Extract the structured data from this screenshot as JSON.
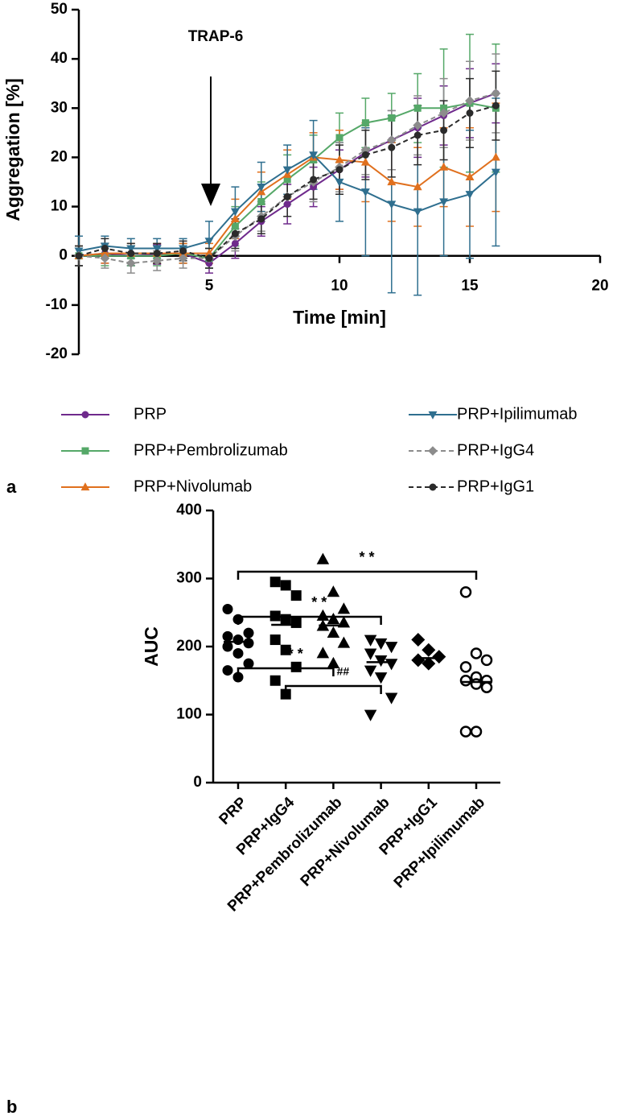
{
  "chart_data": [
    {
      "type": "line",
      "label": "a",
      "xlabel": "Time [min]",
      "ylabel": "Aggregation [%]",
      "annotation": "TRAP-6",
      "x": [
        0,
        1,
        2,
        3,
        4,
        5,
        6,
        7,
        8,
        9,
        10,
        11,
        12,
        13,
        14,
        15,
        16
      ],
      "xlim": [
        0,
        20
      ],
      "xticks": [
        5,
        10,
        15,
        20
      ],
      "ylim": [
        -20,
        50
      ],
      "yticks": [
        -20,
        -10,
        0,
        10,
        20,
        30,
        40,
        50
      ],
      "legend": "bottom",
      "series": [
        {
          "name": "PRP",
          "color": "#6f2a8c",
          "marker": "circle",
          "dash": false,
          "values": [
            0,
            0.5,
            0,
            0.3,
            0.5,
            -1.5,
            2.5,
            7,
            10.5,
            14,
            17.5,
            21,
            23.5,
            26,
            28.5,
            31,
            33
          ],
          "errors": [
            2,
            2,
            2,
            2,
            2,
            2,
            3,
            3,
            4,
            4,
            4,
            5,
            6,
            6,
            6,
            7,
            6
          ]
        },
        {
          "name": "PRP+Pembrolizumab",
          "color": "#55a868",
          "marker": "square",
          "dash": false,
          "values": [
            0,
            0,
            0,
            0,
            0.5,
            -0.5,
            6,
            11,
            15.5,
            19.5,
            24,
            27,
            28,
            30,
            30,
            31,
            30
          ],
          "errors": [
            2,
            2,
            2,
            2,
            2,
            2,
            4,
            4,
            5,
            5,
            5,
            5,
            5,
            7,
            12,
            14,
            13
          ]
        },
        {
          "name": "PRP+Nivolumab",
          "color": "#e0701e",
          "marker": "triangle",
          "dash": false,
          "values": [
            0,
            0.5,
            0.5,
            0.5,
            0.5,
            0.5,
            7.5,
            13,
            16.5,
            20,
            19.5,
            19,
            15,
            14,
            18,
            16,
            20
          ],
          "errors": [
            2,
            2,
            2,
            2,
            2,
            2,
            4,
            4,
            5,
            5,
            6,
            8,
            8,
            8,
            8,
            10,
            11
          ]
        },
        {
          "name": "PRP+Ipilimumab",
          "color": "#2f6f8f",
          "marker": "triangle-down",
          "dash": false,
          "values": [
            1,
            2,
            1.5,
            1.5,
            1.5,
            3,
            9,
            14,
            17.5,
            20.5,
            15,
            13,
            10.5,
            9,
            11,
            12.5,
            17
          ],
          "errors": [
            3,
            2,
            2,
            2,
            2,
            4,
            5,
            5,
            5,
            7,
            8,
            13,
            18,
            17,
            11,
            13,
            15
          ]
        },
        {
          "name": "PRP+IgG4",
          "color": "#8c8c8c",
          "marker": "diamond",
          "dash": true,
          "values": [
            0,
            -0.5,
            -1.5,
            -1,
            -0.5,
            -0.5,
            4,
            8,
            12,
            15,
            18,
            21.5,
            23.5,
            26.5,
            29,
            31.5,
            33
          ],
          "errors": [
            2,
            2,
            2,
            2,
            2,
            2,
            3,
            3,
            4,
            4,
            5,
            5,
            6,
            6,
            7,
            8,
            8
          ]
        },
        {
          "name": "PRP+IgG1",
          "color": "#2b2b2b",
          "marker": "circle",
          "dash": true,
          "values": [
            0,
            1.5,
            0.5,
            0.5,
            1,
            -0.5,
            4.5,
            7.5,
            12,
            15.5,
            17.5,
            20.5,
            22,
            24.5,
            25.5,
            29,
            30.5
          ],
          "errors": [
            2,
            2,
            2,
            2,
            2,
            2,
            3,
            3,
            4,
            4,
            5,
            5,
            6,
            6,
            6,
            7,
            7
          ]
        }
      ]
    },
    {
      "type": "dot",
      "label": "b",
      "ylabel": "AUC",
      "categories": [
        "PRP",
        "PRP+IgG4",
        "PRP+Pembrolizumab",
        "PRP+Nivolumab",
        "PRP+IgG1",
        "PRP+Ipilimumab"
      ],
      "markers": [
        "circle",
        "square",
        "triangle",
        "triangle-down",
        "diamond",
        "open-circle"
      ],
      "color": "#000000",
      "values": [
        [
          255,
          240,
          220,
          215,
          210,
          205,
          200,
          190,
          175,
          165,
          155
        ],
        [
          295,
          290,
          275,
          245,
          240,
          235,
          210,
          195,
          170,
          150,
          130
        ],
        [
          328,
          280,
          255,
          245,
          240,
          235,
          230,
          220,
          205,
          190,
          175
        ],
        [
          210,
          205,
          200,
          190,
          180,
          175,
          165,
          155,
          125,
          100
        ],
        [
          210,
          195,
          185,
          180,
          175
        ],
        [
          280,
          190,
          180,
          170,
          155,
          150,
          150,
          145,
          140,
          75,
          75
        ]
      ],
      "medians": [
        207,
        232,
        231,
        177,
        183,
        148
      ],
      "ylim": [
        0,
        400
      ],
      "yticks": [
        0,
        100,
        200,
        300,
        400
      ],
      "comparisons": [
        {
          "from": "PRP",
          "to": "PRP+Ipilimumab",
          "label": "* *"
        },
        {
          "from": "PRP",
          "to": "PRP+Nivolumab",
          "label": "* *"
        },
        {
          "from": "PRP",
          "to": "PRP+Pembrolizumab",
          "label": "* *"
        },
        {
          "from": "PRP+IgG4",
          "to": "PRP+Nivolumab",
          "label": "##"
        }
      ]
    }
  ]
}
